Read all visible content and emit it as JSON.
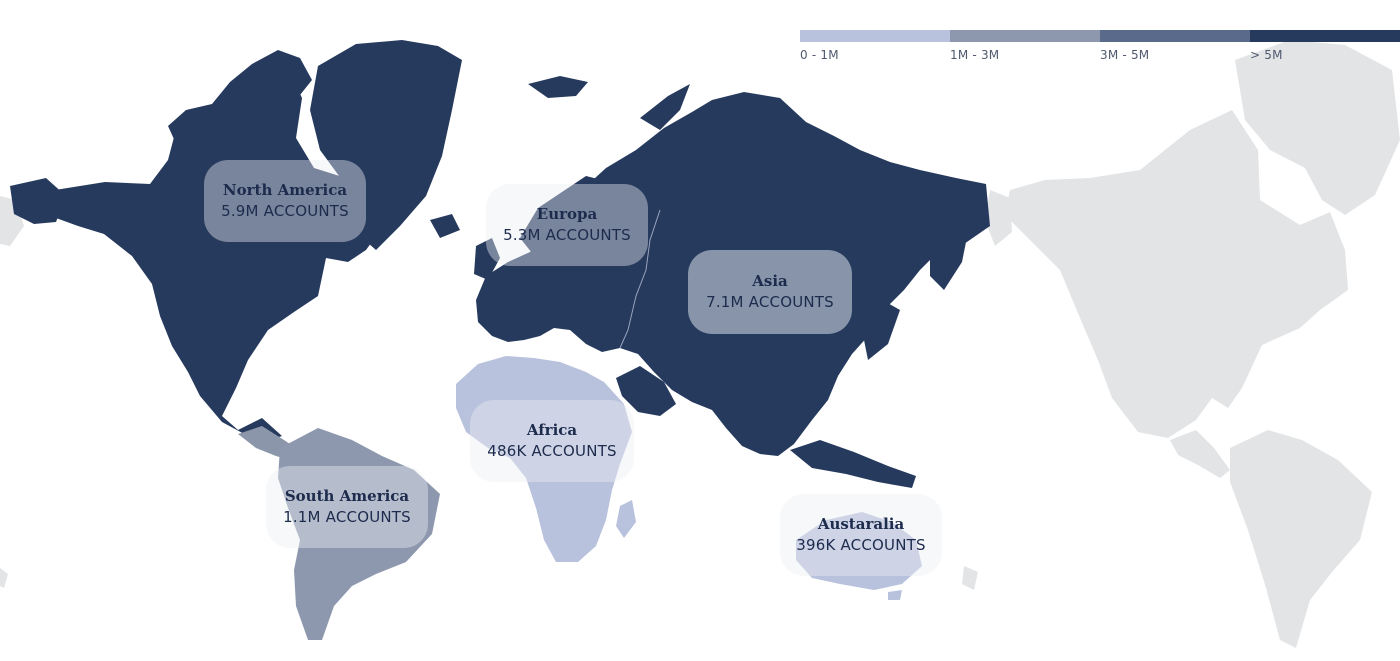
{
  "map": {
    "colors": {
      "dark": "#263a5e",
      "mid_dark": "#8b96ab",
      "mid": "#8d98ae",
      "light": "#b8c2dd",
      "ghost": "#e2e4e6",
      "border": "#9aa5bd"
    }
  },
  "legend": [
    {
      "label": "0 - 1M",
      "color": "#b8c2dd"
    },
    {
      "label": "1M - 3M",
      "color": "#8d98ae"
    },
    {
      "label": "3M - 5M",
      "color": "#5a6a8a"
    },
    {
      "label": "> 5M",
      "color": "#263a5e"
    }
  ],
  "regions": [
    {
      "name": "North America",
      "value": "5.9M ACCOUNTS",
      "bin": "> 5M"
    },
    {
      "name": "Europa",
      "value": "5.3M ACCOUNTS",
      "bin": "> 5M"
    },
    {
      "name": "Asia",
      "value": "7.1M ACCOUNTS",
      "bin": "> 5M"
    },
    {
      "name": "Africa",
      "value": "486K ACCOUNTS",
      "bin": "0 - 1M"
    },
    {
      "name": "South America",
      "value": "1.1M ACCOUNTS",
      "bin": "1M - 3M"
    },
    {
      "name": "Austaralia",
      "value": "396K ACCOUNTS",
      "bin": "0 - 1M"
    }
  ]
}
